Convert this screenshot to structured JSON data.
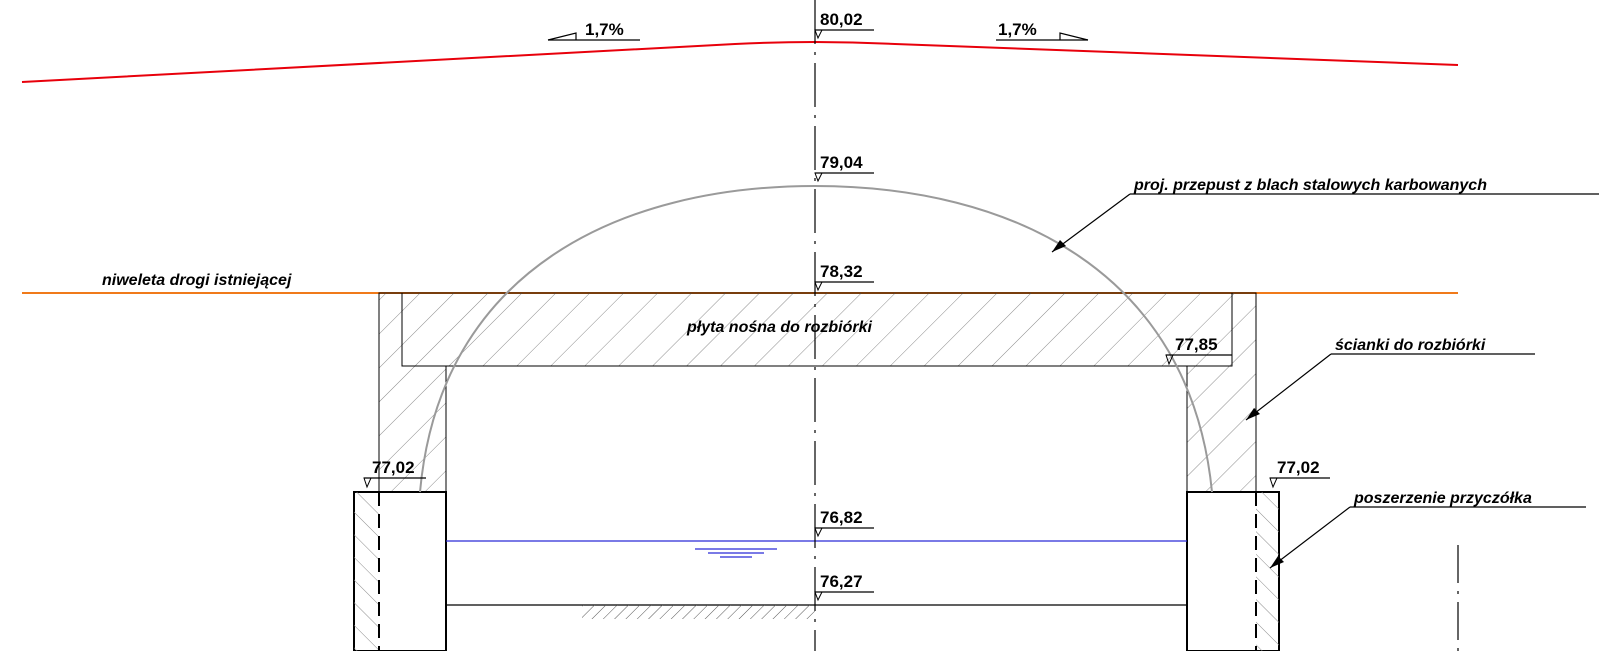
{
  "colors": {
    "road_profile": "#e8000b",
    "existing_road": "#f07a1a",
    "culvert": "#9a9a9a",
    "water": "#2b2bd6",
    "ink": "#000000",
    "hatch": "#8c8c8c"
  },
  "slopes": {
    "left": "1,7%",
    "right": "1,7%"
  },
  "elevations": {
    "road_top": "80,02",
    "culvert_crown": "79,04",
    "existing_road": "78,32",
    "slab_bottom": "77,85",
    "footing_left": "77,02",
    "footing_right": "77,02",
    "water_level": "76,82",
    "stream_bed": "76,27"
  },
  "notes": {
    "existing_road": "niweleta drogi istniejącej",
    "culvert": "proj. przepust z blach stalowych karbowanych",
    "slab": "płyta nośna do rozbiórki",
    "walls": "ścianki do rozbiórki",
    "abutment": "poszerzenie przyczółka"
  }
}
